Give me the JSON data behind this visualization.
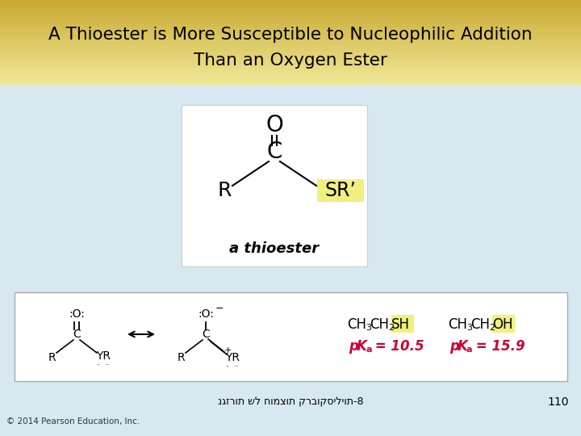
{
  "title_line1": "A Thioester is More Susceptible to Nucleophilic Addition",
  "title_line2": "Than an Oxygen Ester",
  "title_bg_top": "#c8a830",
  "title_bg_bottom": "#f0e898",
  "body_bg": "#d8e8f0",
  "white_box_color": "#ffffff",
  "yellow_highlight": "#f0f080",
  "footer_text": "נגזרות של חומצות קרבוקסיליות-8",
  "page_number": "110",
  "copyright": "© 2014 Pearson Education, Inc.",
  "pka_color": "#cc0033"
}
